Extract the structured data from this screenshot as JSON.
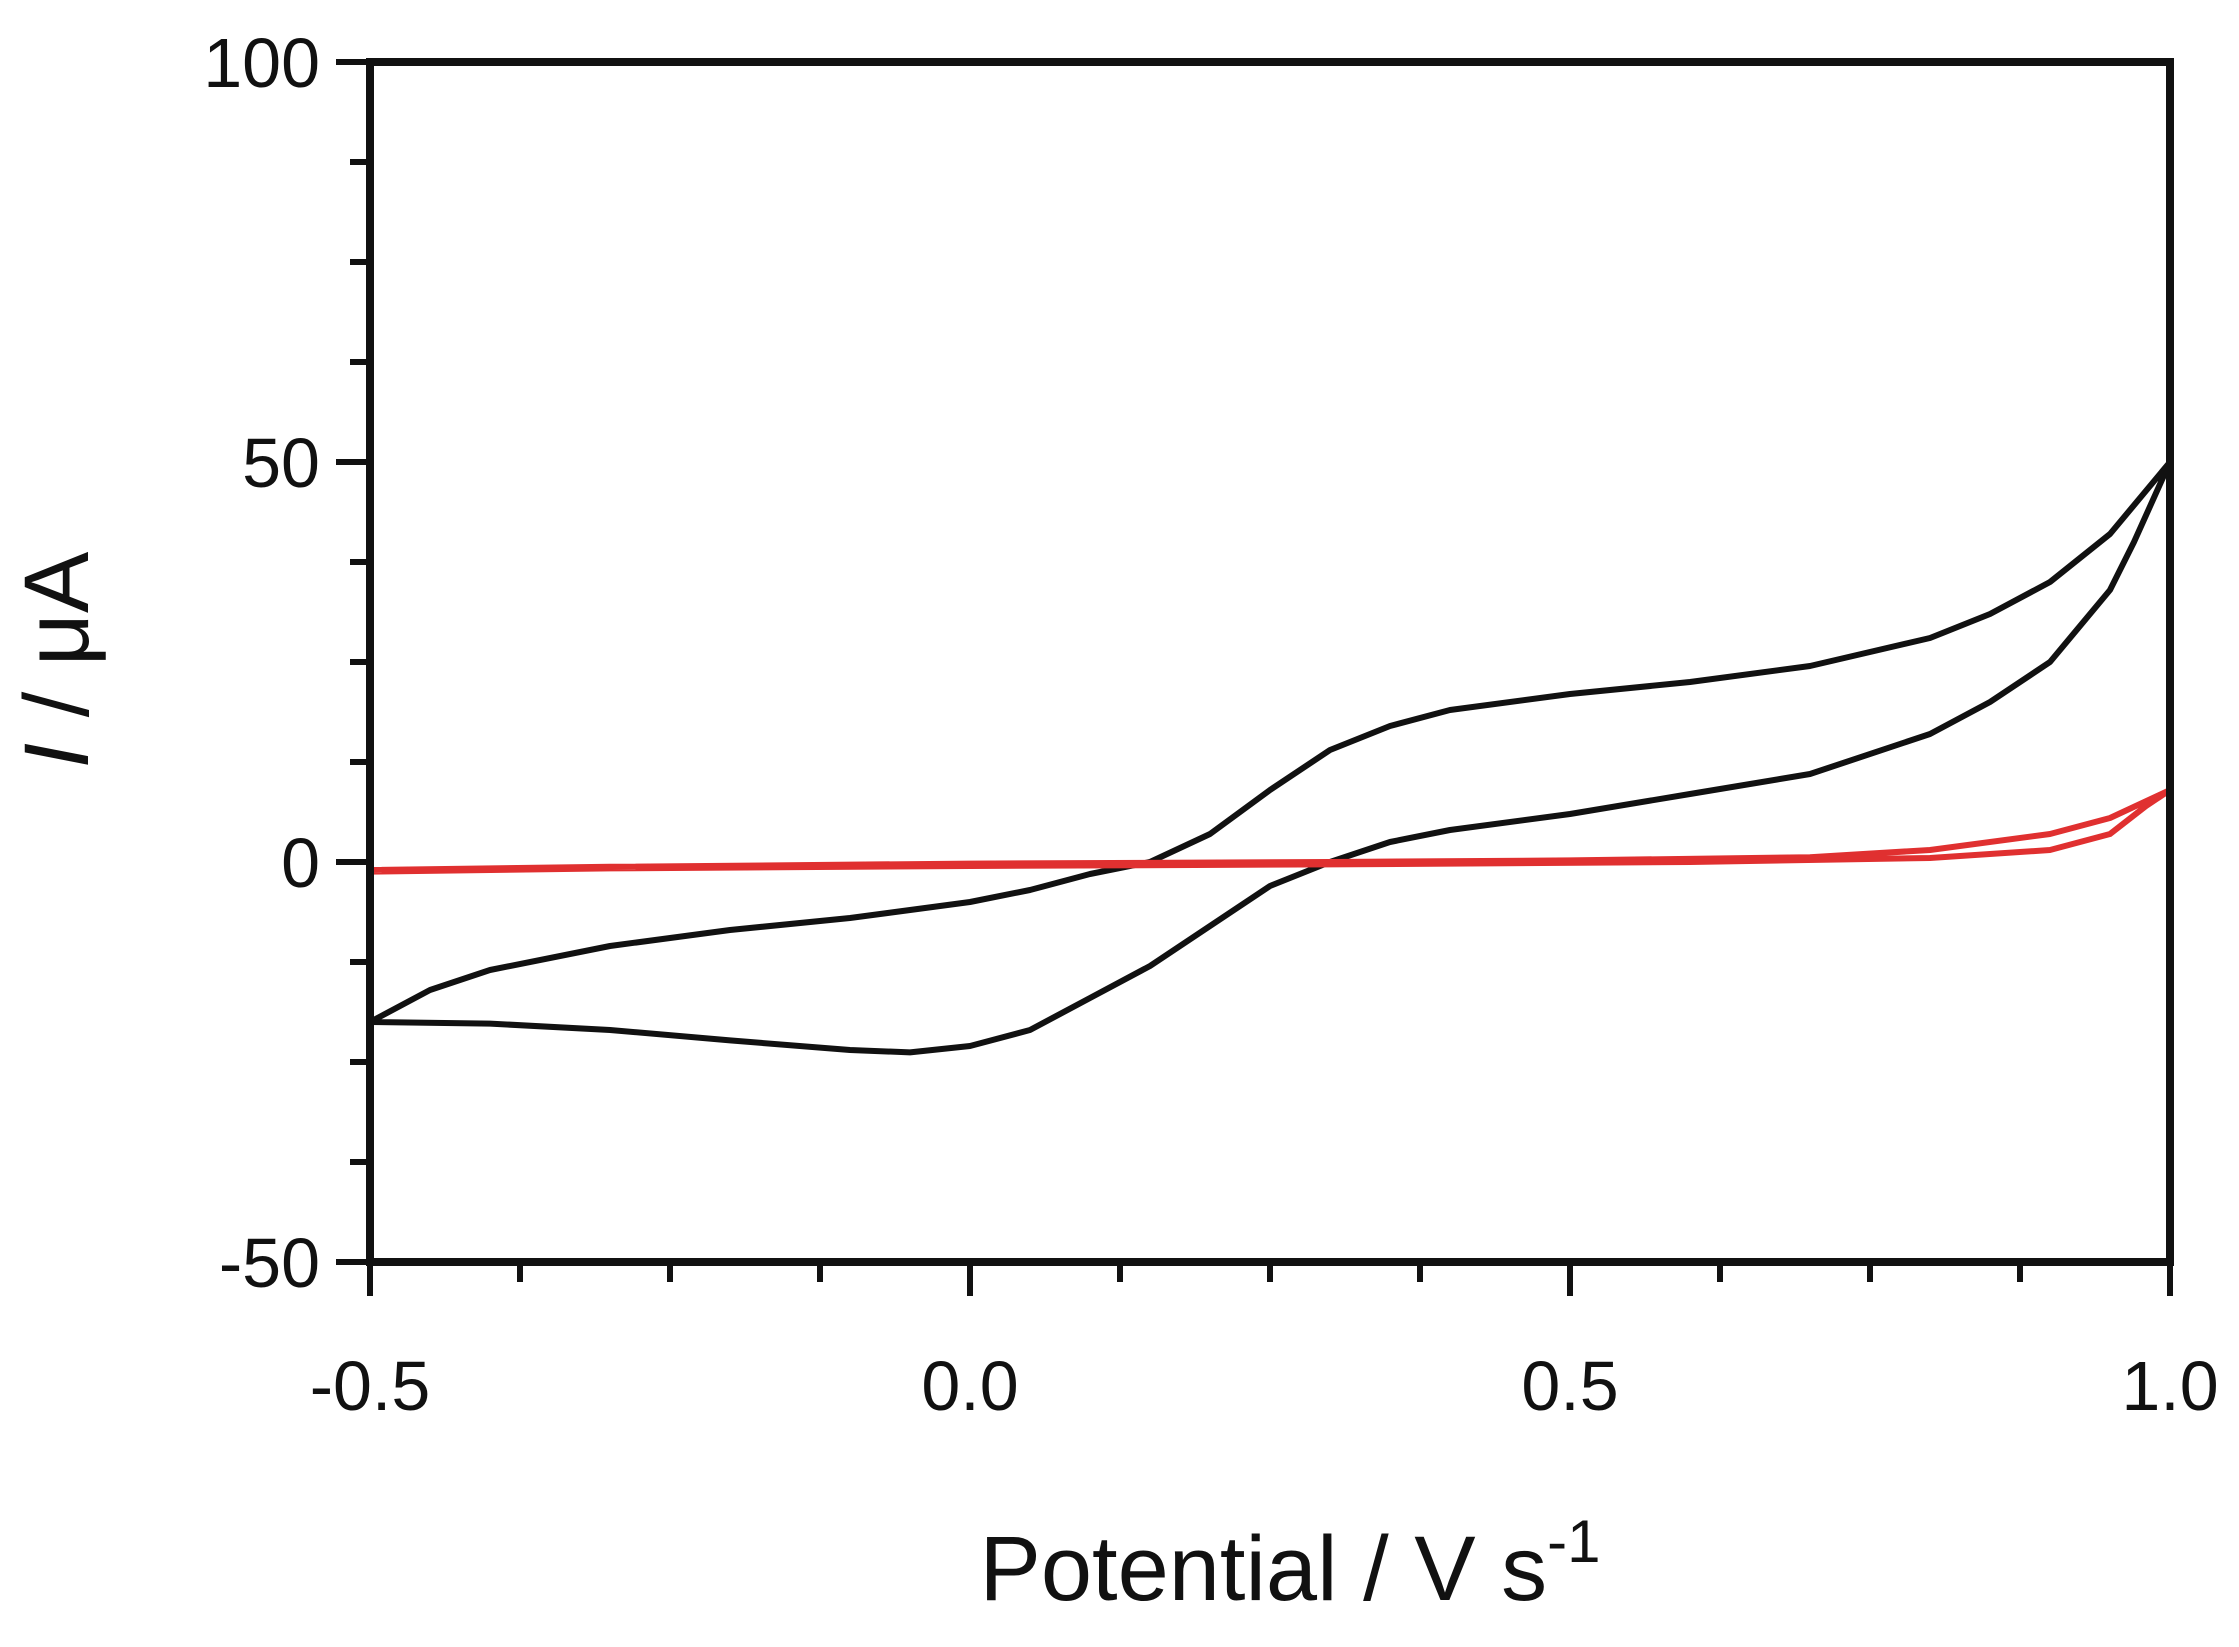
{
  "chart_data": {
    "type": "line",
    "title": "",
    "xlabel": {
      "main": "Potential",
      "sep": " / ",
      "unit": "V s",
      "sup": "-1"
    },
    "ylabel": {
      "var": "I",
      "sep": " / ",
      "unit": "μA"
    },
    "xlim": [
      -0.5,
      1.0
    ],
    "ylim": [
      -50,
      100
    ],
    "x_ticks": [
      "-0.5",
      "0.0",
      "0.5",
      "1.0"
    ],
    "y_ticks": [
      "-50",
      "0",
      "50",
      "100"
    ],
    "x_minor_step": 0.125,
    "y_minor_step": 12.5,
    "grid": false,
    "legend": "none",
    "series": [
      {
        "color": "#111111",
        "points": [
          [
            -0.5,
            -20
          ],
          [
            -0.45,
            -16
          ],
          [
            -0.4,
            -13.5
          ],
          [
            -0.3,
            -10.5
          ],
          [
            -0.2,
            -8.5
          ],
          [
            -0.1,
            -7
          ],
          [
            0.0,
            -5
          ],
          [
            0.05,
            -3.5
          ],
          [
            0.1,
            -1.5
          ],
          [
            0.15,
            0
          ],
          [
            0.2,
            3.5
          ],
          [
            0.25,
            9
          ],
          [
            0.3,
            14
          ],
          [
            0.35,
            17
          ],
          [
            0.4,
            19
          ],
          [
            0.5,
            21
          ],
          [
            0.6,
            22.5
          ],
          [
            0.7,
            24.5
          ],
          [
            0.8,
            28
          ],
          [
            0.85,
            31
          ],
          [
            0.9,
            35
          ],
          [
            0.95,
            41
          ],
          [
            1.0,
            50
          ],
          [
            0.97,
            40
          ],
          [
            0.95,
            34
          ],
          [
            0.9,
            25
          ],
          [
            0.85,
            20
          ],
          [
            0.8,
            16
          ],
          [
            0.7,
            11
          ],
          [
            0.6,
            8.5
          ],
          [
            0.5,
            6
          ],
          [
            0.4,
            4
          ],
          [
            0.35,
            2.5
          ],
          [
            0.3,
            0
          ],
          [
            0.25,
            -3
          ],
          [
            0.2,
            -8
          ],
          [
            0.15,
            -13
          ],
          [
            0.1,
            -17
          ],
          [
            0.05,
            -21
          ],
          [
            0.0,
            -23
          ],
          [
            -0.05,
            -23.8
          ],
          [
            -0.1,
            -23.5
          ],
          [
            -0.2,
            -22.3
          ],
          [
            -0.3,
            -21
          ],
          [
            -0.4,
            -20.2
          ],
          [
            -0.5,
            -20
          ]
        ]
      },
      {
        "color": "#e03030",
        "points": [
          [
            -0.5,
            -1
          ],
          [
            -0.3,
            -0.6
          ],
          [
            0.0,
            -0.2
          ],
          [
            0.3,
            0
          ],
          [
            0.5,
            0.2
          ],
          [
            0.7,
            0.6
          ],
          [
            0.8,
            1.5
          ],
          [
            0.9,
            3.5
          ],
          [
            0.95,
            5.5
          ],
          [
            1.0,
            9
          ],
          [
            0.98,
            7
          ],
          [
            0.95,
            3.5
          ],
          [
            0.9,
            1.5
          ],
          [
            0.8,
            0.5
          ],
          [
            0.6,
            0
          ],
          [
            0.3,
            -0.3
          ],
          [
            0.0,
            -0.5
          ],
          [
            -0.3,
            -0.8
          ],
          [
            -0.5,
            -1.2
          ]
        ]
      }
    ]
  }
}
